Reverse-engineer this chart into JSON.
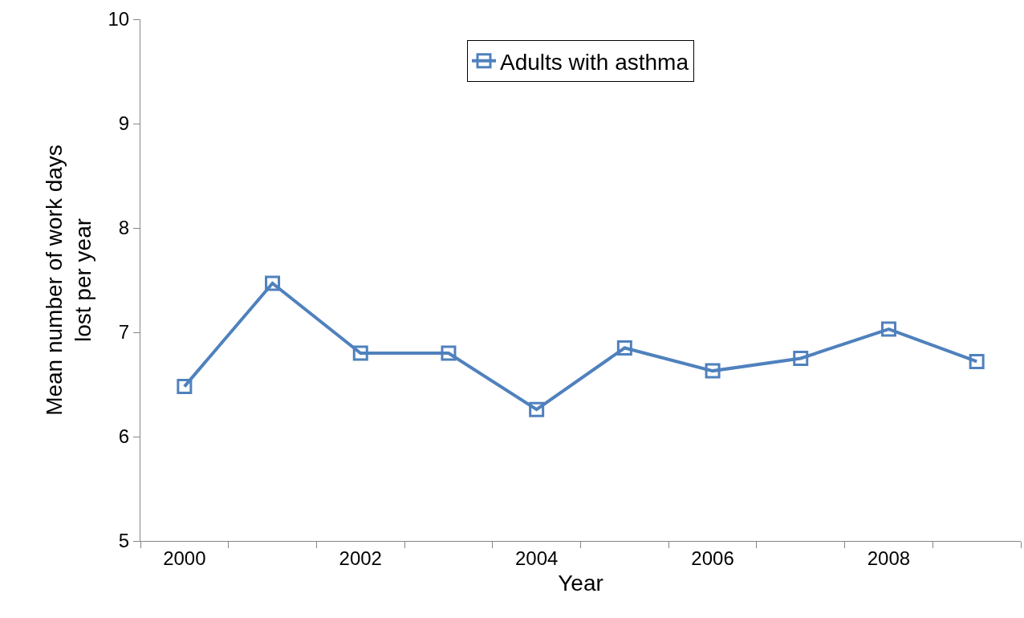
{
  "chart_data": {
    "type": "line",
    "xlabel": "Year",
    "ylabel": "Mean number of work days\nlost per year",
    "categories": [
      "2000",
      null,
      "2002",
      null,
      "2004",
      null,
      "2006",
      null,
      "2008",
      null
    ],
    "series": [
      {
        "name": "Adults with asthma",
        "color": "#4f81bd",
        "values": [
          6.48,
          7.47,
          6.8,
          6.8,
          6.26,
          6.85,
          6.63,
          6.75,
          7.03,
          6.72
        ]
      }
    ],
    "ylim": [
      5,
      10
    ],
    "yticks": [
      5,
      6,
      7,
      8,
      9,
      10
    ],
    "legend": "top",
    "marker": "square",
    "line_style": "solid"
  }
}
